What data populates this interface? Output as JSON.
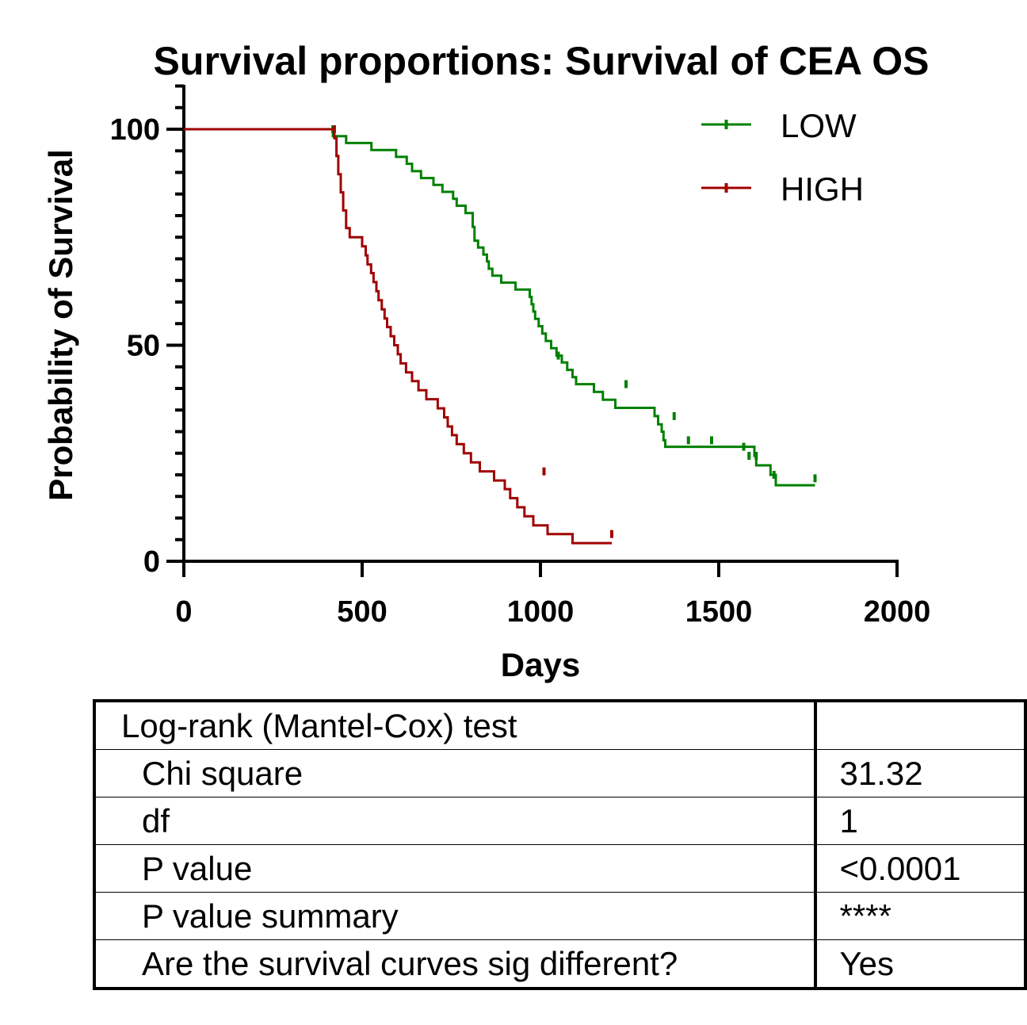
{
  "chart_data": {
    "type": "line",
    "subtype": "kaplan-meier",
    "title": "Survival proportions: Survival of CEA OS",
    "xlabel": "Days",
    "ylabel": "Probability of Survival",
    "xlim": [
      0,
      2000
    ],
    "ylim": [
      0,
      100
    ],
    "xticks": [
      "0",
      "500",
      "1000",
      "1500",
      "2000"
    ],
    "yticks": [
      "0",
      "50",
      "100"
    ],
    "grid": false,
    "legend_position": "top-right",
    "series": [
      {
        "name": "LOW",
        "color": "#008000",
        "steps": [
          [
            0,
            100
          ],
          [
            418,
            98.4
          ],
          [
            455,
            96.8
          ],
          [
            526,
            95.2
          ],
          [
            595,
            93.6
          ],
          [
            625,
            92.0
          ],
          [
            640,
            90.3
          ],
          [
            665,
            88.7
          ],
          [
            700,
            87.1
          ],
          [
            725,
            85.5
          ],
          [
            755,
            83.9
          ],
          [
            765,
            82.3
          ],
          [
            790,
            80.6
          ],
          [
            810,
            77.4
          ],
          [
            815,
            74.2
          ],
          [
            825,
            72.6
          ],
          [
            840,
            71.0
          ],
          [
            850,
            69.4
          ],
          [
            855,
            67.7
          ],
          [
            865,
            66.1
          ],
          [
            890,
            64.5
          ],
          [
            930,
            62.9
          ],
          [
            970,
            61.2
          ],
          [
            975,
            59.5
          ],
          [
            980,
            57.8
          ],
          [
            985,
            56.1
          ],
          [
            995,
            54.4
          ],
          [
            1005,
            52.7
          ],
          [
            1015,
            51.0
          ],
          [
            1030,
            49.3
          ],
          [
            1045,
            47.6
          ],
          [
            1060,
            46.0
          ],
          [
            1075,
            44.3
          ],
          [
            1090,
            42.6
          ],
          [
            1100,
            41.0
          ],
          [
            1150,
            39.2
          ],
          [
            1175,
            37.4
          ],
          [
            1210,
            35.5
          ],
          [
            1320,
            33.6
          ],
          [
            1330,
            31.7
          ],
          [
            1340,
            30.0
          ],
          [
            1345,
            28.0
          ],
          [
            1350,
            26.5
          ],
          [
            1600,
            24.4
          ],
          [
            1605,
            22.2
          ],
          [
            1645,
            20.0
          ],
          [
            1660,
            17.6
          ],
          [
            1770,
            17.6
          ]
        ],
        "censored": [
          [
            418,
            100
          ],
          [
            1050,
            47.6
          ],
          [
            1240,
            41.0
          ],
          [
            1375,
            33.6
          ],
          [
            1415,
            28.0
          ],
          [
            1480,
            28.0
          ],
          [
            1570,
            26.5
          ],
          [
            1585,
            24.4
          ],
          [
            1605,
            24.4
          ],
          [
            1655,
            20.0
          ],
          [
            1770,
            19.2
          ]
        ]
      },
      {
        "name": "HIGH",
        "color": "#a00000",
        "steps": [
          [
            0,
            100
          ],
          [
            418,
            100
          ],
          [
            422,
            97.9
          ],
          [
            428,
            93.8
          ],
          [
            433,
            89.6
          ],
          [
            440,
            85.4
          ],
          [
            447,
            81.2
          ],
          [
            455,
            77.1
          ],
          [
            465,
            75.0
          ],
          [
            500,
            72.9
          ],
          [
            510,
            70.8
          ],
          [
            515,
            68.7
          ],
          [
            525,
            66.7
          ],
          [
            532,
            64.6
          ],
          [
            540,
            62.5
          ],
          [
            546,
            60.4
          ],
          [
            555,
            58.3
          ],
          [
            563,
            56.2
          ],
          [
            570,
            54.2
          ],
          [
            580,
            52.1
          ],
          [
            590,
            50.0
          ],
          [
            600,
            47.9
          ],
          [
            608,
            45.8
          ],
          [
            623,
            43.7
          ],
          [
            640,
            41.7
          ],
          [
            658,
            39.6
          ],
          [
            680,
            37.5
          ],
          [
            712,
            35.4
          ],
          [
            730,
            33.3
          ],
          [
            740,
            31.2
          ],
          [
            752,
            29.2
          ],
          [
            765,
            27.1
          ],
          [
            785,
            25.0
          ],
          [
            805,
            22.9
          ],
          [
            830,
            20.8
          ],
          [
            870,
            18.7
          ],
          [
            900,
            16.7
          ],
          [
            915,
            14.6
          ],
          [
            935,
            12.5
          ],
          [
            955,
            10.4
          ],
          [
            980,
            8.3
          ],
          [
            1020,
            6.3
          ],
          [
            1090,
            4.2
          ],
          [
            1200,
            4.2
          ]
        ],
        "censored": [
          [
            422,
            100
          ],
          [
            1010,
            20.8
          ],
          [
            1200,
            6.3
          ]
        ]
      }
    ]
  },
  "stats_table": {
    "rows": [
      {
        "label": "Log-rank (Mantel-Cox) test",
        "value": ""
      },
      {
        "label": "Chi square",
        "value": "31.32"
      },
      {
        "label": "df",
        "value": "1"
      },
      {
        "label": "P value",
        "value": "<0.0001"
      },
      {
        "label": "P value summary",
        "value": "****"
      },
      {
        "label": "Are the survival curves sig different?",
        "value": "Yes"
      }
    ]
  }
}
